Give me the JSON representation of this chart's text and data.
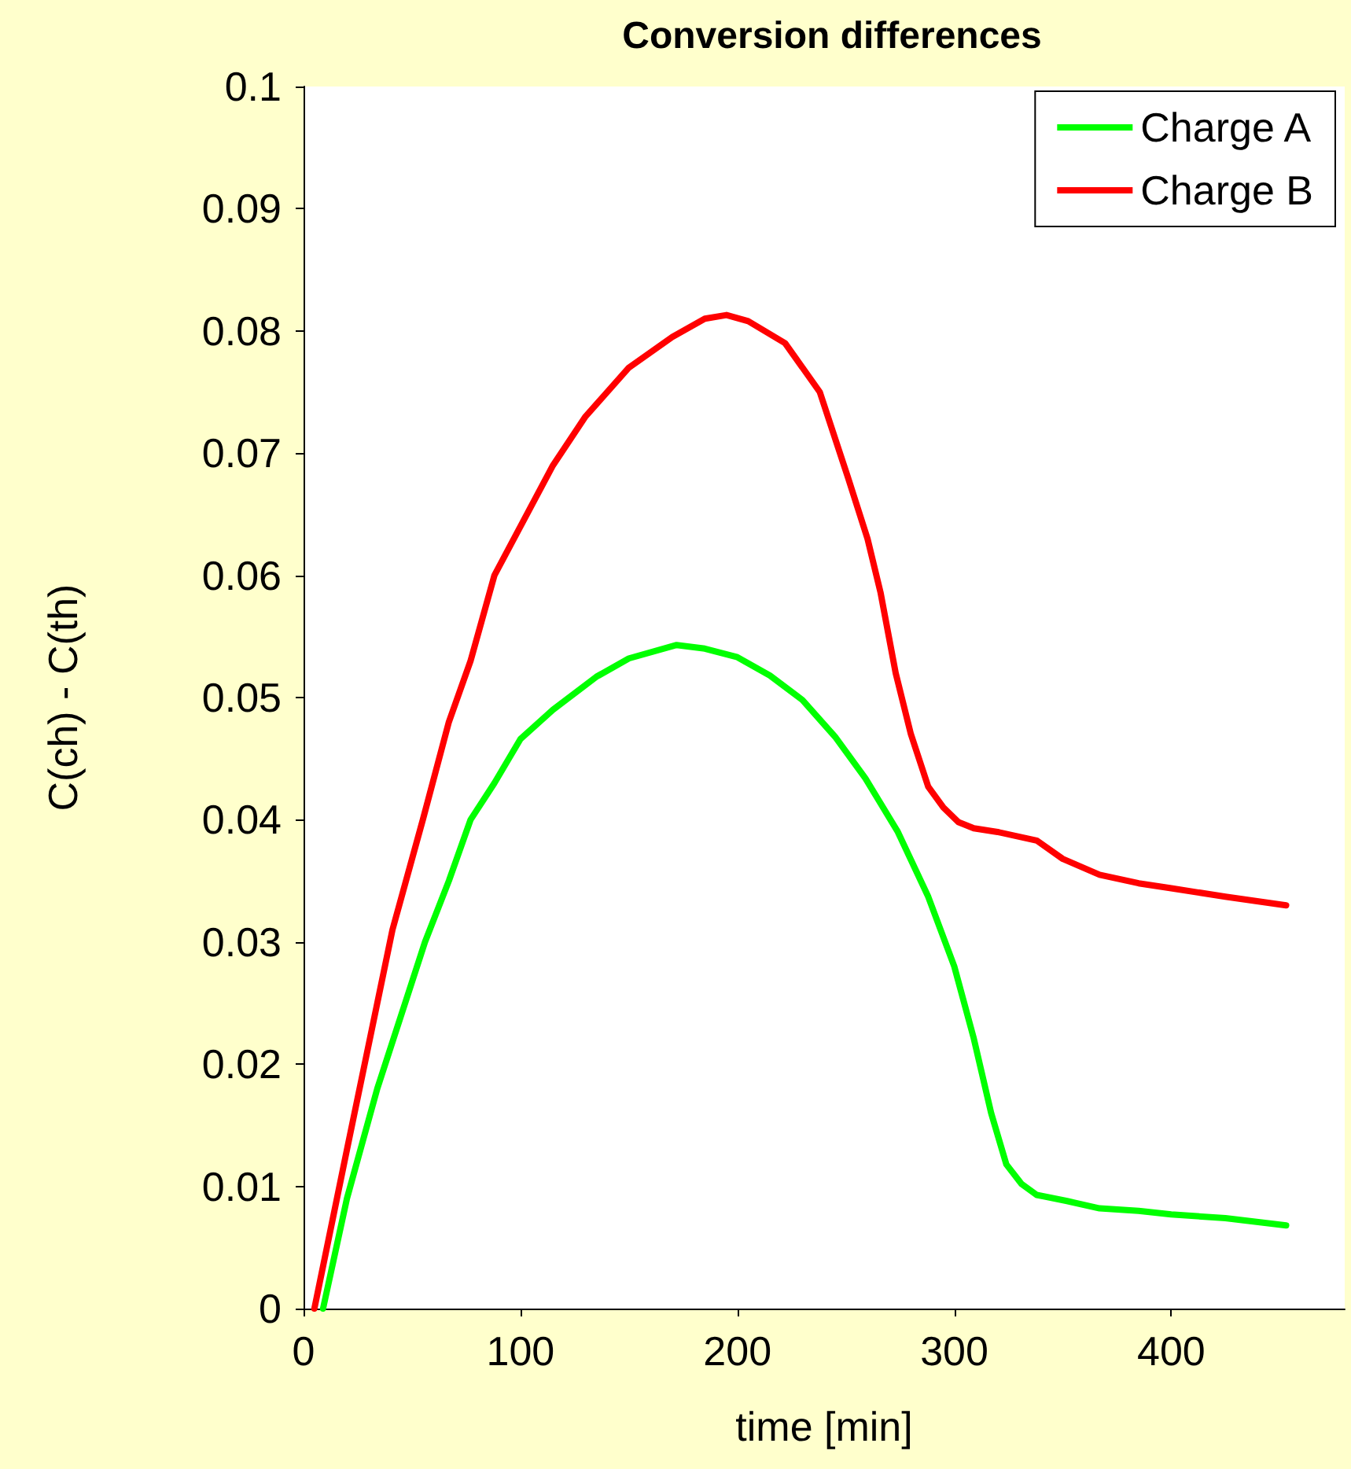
{
  "chart_data": {
    "type": "line",
    "title": "Conversion differences",
    "xlabel": "time [min]",
    "ylabel": "C(ch) - C(th)",
    "xlim": [
      0,
      480
    ],
    "xticks": [
      0,
      100,
      200,
      300,
      400
    ],
    "ylim": [
      0,
      0.1
    ],
    "yticks": [
      0,
      0.01,
      0.02,
      0.03,
      0.04,
      0.05,
      0.06,
      0.07,
      0.08,
      0.09,
      0.1
    ],
    "grid": false,
    "legend": "top right",
    "marker": "none",
    "line_style": "solid",
    "series": [
      {
        "name": "Charge A",
        "color": "#00ff00",
        "x": [
          9,
          20,
          34,
          45,
          56,
          67,
          77,
          88,
          100,
          115,
          135,
          150,
          172,
          185,
          200,
          215,
          230,
          245,
          259,
          274,
          288,
          300,
          309,
          317,
          324,
          331,
          338,
          352,
          367,
          385,
          400,
          425,
          453
        ],
        "values": [
          0,
          0.009,
          0.018,
          0.024,
          0.03,
          0.035,
          0.04,
          0.043,
          0.0466,
          0.049,
          0.0517,
          0.0532,
          0.0543,
          0.054,
          0.0533,
          0.0518,
          0.0498,
          0.0468,
          0.0434,
          0.039,
          0.0337,
          0.028,
          0.0221,
          0.016,
          0.0118,
          0.0102,
          0.0093,
          0.0088,
          0.0082,
          0.008,
          0.0077,
          0.0074,
          0.0068
        ]
      },
      {
        "name": "Charge B",
        "color": "#ff0000",
        "x": [
          5,
          20,
          34,
          41,
          55,
          67,
          77,
          88,
          100,
          115,
          130,
          150,
          170,
          185,
          195,
          205,
          222,
          238,
          251,
          260,
          266,
          273,
          280,
          288,
          295,
          302,
          309,
          320,
          338,
          350,
          367,
          385,
          400,
          425,
          453
        ],
        "values": [
          0,
          0.013,
          0.025,
          0.031,
          0.04,
          0.048,
          0.053,
          0.06,
          0.064,
          0.069,
          0.073,
          0.077,
          0.0795,
          0.081,
          0.0813,
          0.0808,
          0.079,
          0.075,
          0.068,
          0.063,
          0.0586,
          0.052,
          0.047,
          0.0427,
          0.041,
          0.0398,
          0.0393,
          0.039,
          0.0383,
          0.0368,
          0.0355,
          0.0348,
          0.0344,
          0.0337,
          0.033
        ]
      }
    ]
  }
}
